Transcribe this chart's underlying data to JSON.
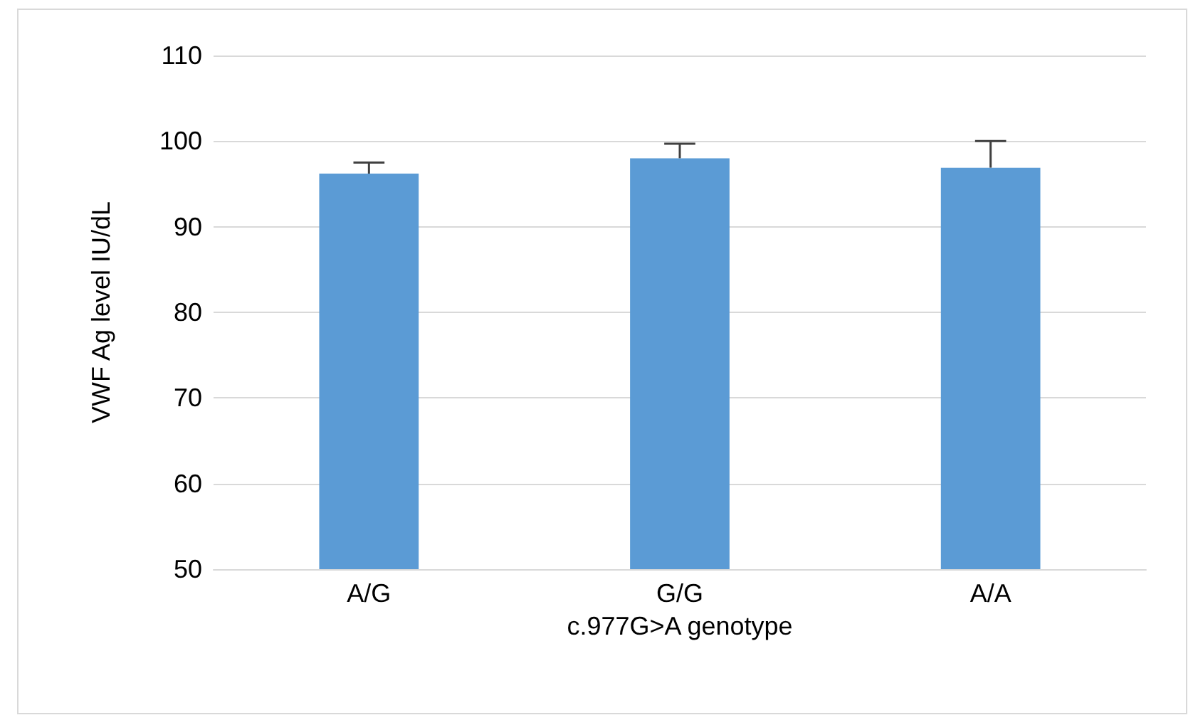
{
  "chart_data": {
    "type": "bar",
    "xlabel": "c.977G>A genotype",
    "ylabel": "VWF Ag level IU/dL",
    "categories": [
      "A/G",
      "G/G",
      "A/A"
    ],
    "values": [
      96.2,
      98.0,
      96.9
    ],
    "errors": [
      [
        96.2,
        97.5
      ],
      [
        98.0,
        99.7
      ],
      [
        96.9,
        100.0
      ]
    ],
    "color": "#5b9bd5",
    "ylim": [
      50,
      110
    ],
    "yticks": [
      50,
      60,
      70,
      80,
      90,
      100,
      110
    ],
    "grid": "y"
  }
}
